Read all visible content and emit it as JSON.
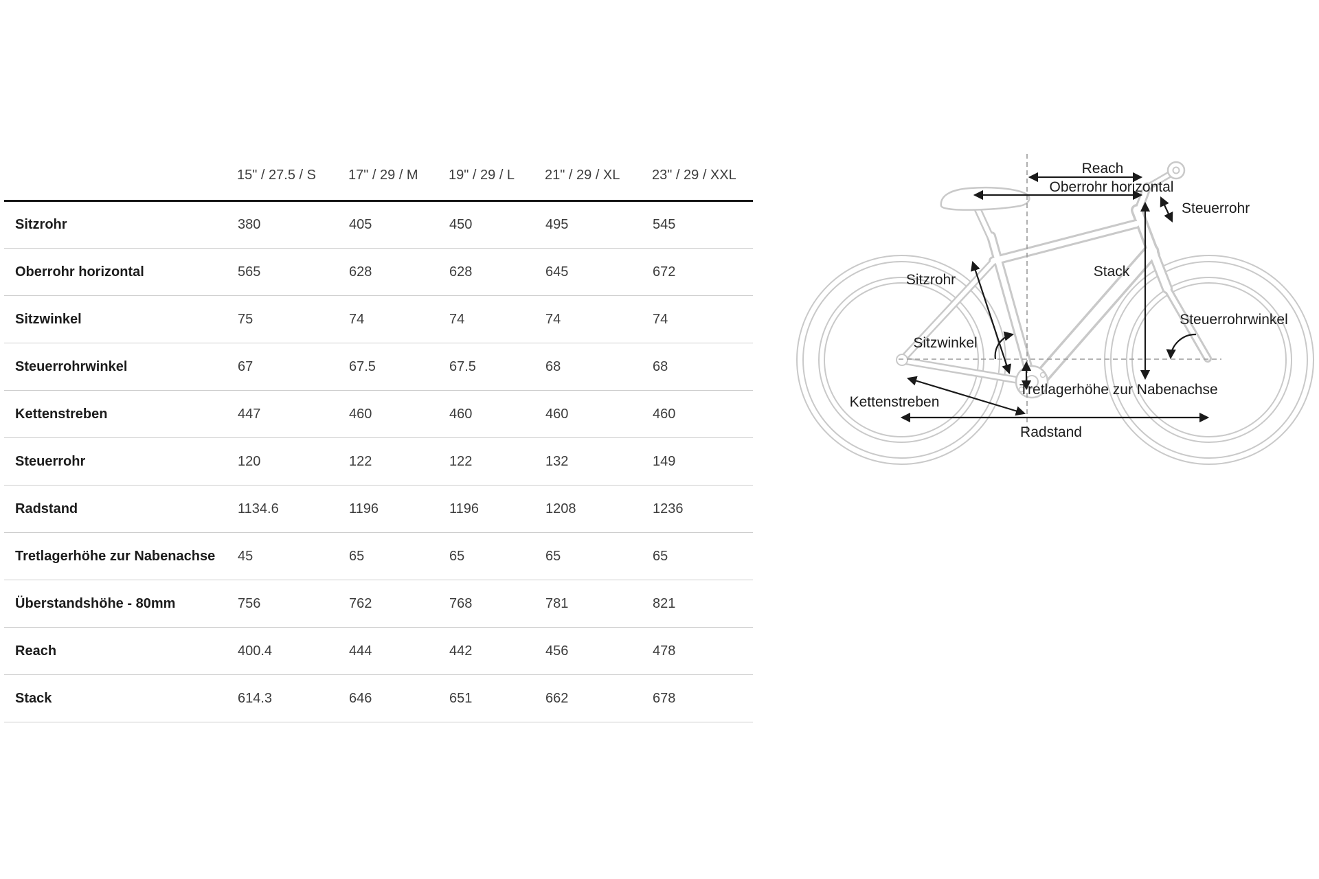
{
  "colors": {
    "table_header_rule": "#161616",
    "row_rule": "#cdcdcd",
    "label_text": "#1c1c1c",
    "value_text": "#3d3d3d",
    "diagram_outline": "#c9c9c9",
    "diagram_arrow": "#1a1a1a",
    "dashed_guide": "#9b9b9b"
  },
  "chart_data": {
    "type": "table",
    "title": "",
    "columns": [
      "15\" / 27.5 / S",
      "17\" / 29 / M",
      "19\" / 29 / L",
      "21\" / 29 / XL",
      "23\" / 29 / XXL"
    ],
    "rows": [
      {
        "label": "Sitzrohr",
        "values": [
          "380",
          "405",
          "450",
          "495",
          "545"
        ]
      },
      {
        "label": "Oberrohr horizontal",
        "values": [
          "565",
          "628",
          "628",
          "645",
          "672"
        ]
      },
      {
        "label": "Sitzwinkel",
        "values": [
          "75",
          "74",
          "74",
          "74",
          "74"
        ]
      },
      {
        "label": "Steuerrohrwinkel",
        "values": [
          "67",
          "67.5",
          "67.5",
          "68",
          "68"
        ]
      },
      {
        "label": "Kettenstreben",
        "values": [
          "447",
          "460",
          "460",
          "460",
          "460"
        ]
      },
      {
        "label": "Steuerrohr",
        "values": [
          "120",
          "122",
          "122",
          "132",
          "149"
        ]
      },
      {
        "label": "Radstand",
        "values": [
          "1134.6",
          "1196",
          "1196",
          "1208",
          "1236"
        ]
      },
      {
        "label": "Tretlagerhöhe zur Nabenachse",
        "values": [
          "45",
          "65",
          "65",
          "65",
          "65"
        ]
      },
      {
        "label": "Überstandshöhe - 80mm",
        "values": [
          "756",
          "762",
          "768",
          "781",
          "821"
        ]
      },
      {
        "label": "Reach",
        "values": [
          "400.4",
          "444",
          "442",
          "456",
          "478"
        ]
      },
      {
        "label": "Stack",
        "values": [
          "614.3",
          "646",
          "651",
          "662",
          "678"
        ]
      }
    ]
  },
  "diagram": {
    "labels": {
      "reach": "Reach",
      "oberrohr": "Oberrohr horizontal",
      "steuerrohr": "Steuerrohr",
      "stack": "Stack",
      "sitzrohr": "Sitzrohr",
      "sitzwinkel": "Sitzwinkel",
      "steuerrohrwinkel": "Steuerrohrwinkel",
      "tretlagerhoehe": "Tretlagerhöhe zur Nabenachse",
      "kettenstreben": "Kettenstreben",
      "radstand": "Radstand"
    }
  }
}
